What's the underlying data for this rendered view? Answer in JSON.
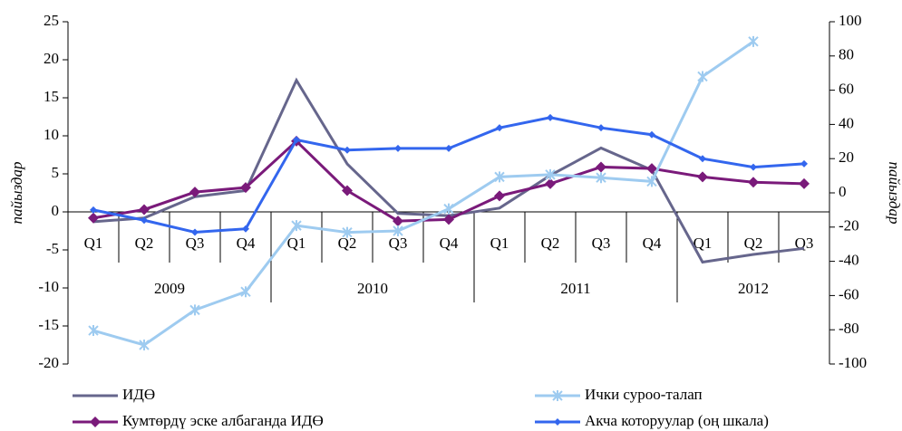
{
  "chart_data": {
    "type": "line",
    "categories": [
      "Q1",
      "Q2",
      "Q3",
      "Q4",
      "Q1",
      "Q2",
      "Q3",
      "Q4",
      "Q1",
      "Q2",
      "Q3",
      "Q4",
      "Q1",
      "Q2",
      "Q3"
    ],
    "years": [
      "2009",
      "2010",
      "2011",
      "2012"
    ],
    "ylabel": "пайыздар",
    "y2label": "пайыздар",
    "ylim": [
      -20,
      25
    ],
    "yticks": [
      -20,
      -15,
      -10,
      -5,
      0,
      5,
      10,
      15,
      20,
      25
    ],
    "y2lim": [
      -100,
      100
    ],
    "y2ticks": [
      -100,
      -80,
      -60,
      -40,
      -20,
      0,
      20,
      40,
      60,
      80,
      100
    ],
    "legend": "bottom",
    "series": [
      {
        "name": "ИДӨ",
        "color": "#66668c",
        "marker": "none",
        "values": [
          -1.3,
          -0.8,
          2.0,
          2.8,
          17.3,
          6.3,
          -0.2,
          -0.5,
          0.5,
          4.8,
          8.4,
          5.5,
          -6.6,
          -5.6,
          -4.8
        ]
      },
      {
        "name": "Кумтөрдү эске албаганда ИДӨ",
        "color": "#7a1a7a",
        "marker": "diamond",
        "values": [
          -0.8,
          0.3,
          2.6,
          3.2,
          9.3,
          2.8,
          -1.2,
          -1.0,
          2.1,
          3.7,
          5.9,
          5.7,
          4.6,
          3.9,
          3.7
        ]
      },
      {
        "name": "Ички суроо-талап",
        "color": "#9ecbf0",
        "marker": "star",
        "values": [
          -15.6,
          -17.5,
          -12.9,
          -10.5,
          -1.8,
          -2.7,
          -2.5,
          0.4,
          4.6,
          4.9,
          4.5,
          4.0,
          17.8,
          22.4,
          null
        ]
      },
      {
        "name": "Акча которуулар (оң шкала)",
        "color": "#3366ee",
        "marker": "smalldiamond",
        "axis": "y2",
        "values": [
          -10,
          -16,
          -23,
          -21,
          31,
          25,
          26,
          26,
          38,
          44,
          38,
          34,
          20,
          15,
          17
        ]
      }
    ]
  }
}
